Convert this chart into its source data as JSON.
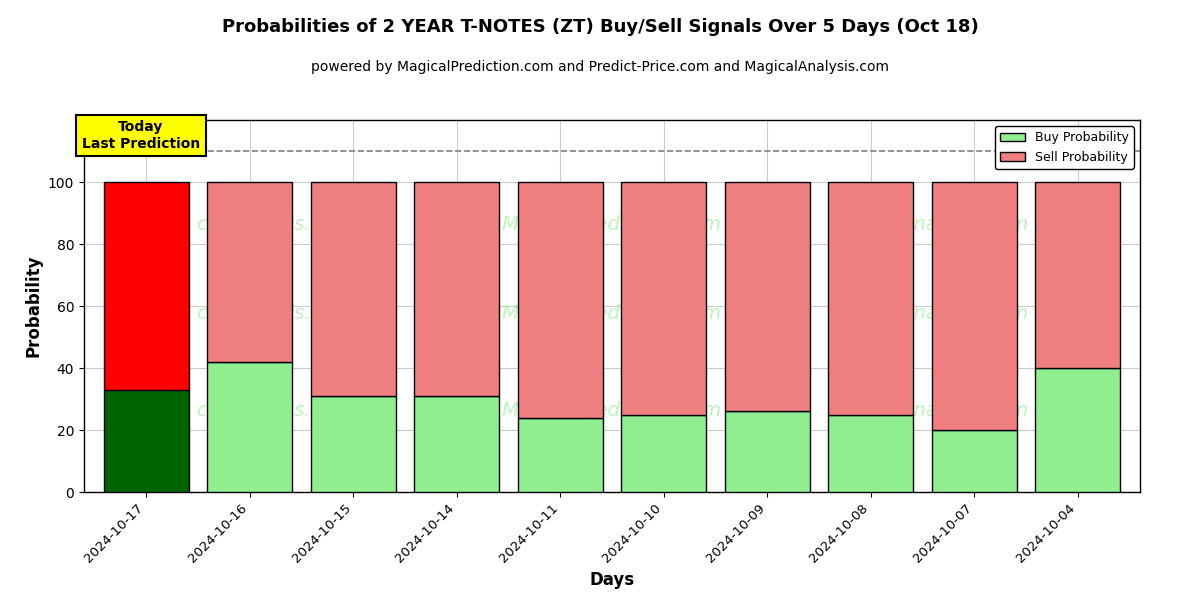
{
  "title": "Probabilities of 2 YEAR T-NOTES (ZT) Buy/Sell Signals Over 5 Days (Oct 18)",
  "subtitle": "powered by MagicalPrediction.com and Predict-Price.com and MagicalAnalysis.com",
  "xlabel": "Days",
  "ylabel": "Probability",
  "ylim": [
    0,
    120
  ],
  "yticks": [
    0,
    20,
    40,
    60,
    80,
    100
  ],
  "days": [
    "2024-10-17",
    "2024-10-16",
    "2024-10-15",
    "2024-10-14",
    "2024-10-11",
    "2024-10-10",
    "2024-10-09",
    "2024-10-08",
    "2024-10-07",
    "2024-10-04"
  ],
  "buy_probs": [
    33,
    42,
    31,
    31,
    24,
    25,
    26,
    25,
    20,
    40
  ],
  "sell_probs": [
    67,
    58,
    69,
    69,
    76,
    75,
    74,
    75,
    80,
    60
  ],
  "today_bar_buy_color": "#006400",
  "today_bar_sell_color": "#ff0000",
  "normal_bar_buy_color": "#90EE90",
  "normal_bar_sell_color": "#F08080",
  "today_box_color": "#ffff00",
  "today_label": "Today\nLast Prediction",
  "bar_edge_color": "black",
  "bar_linewidth": 1.0,
  "dashed_line_y": 110,
  "background_color": "#ffffff",
  "grid_color": "#cccccc"
}
